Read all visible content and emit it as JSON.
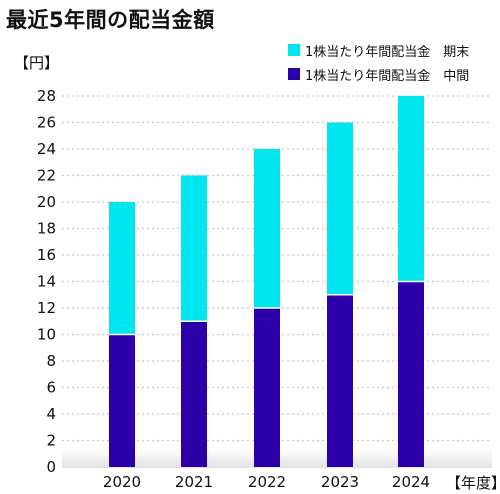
{
  "title": "最近5年間の配当金額",
  "chart_data": {
    "type": "bar",
    "stacked": true,
    "categories": [
      "2020",
      "2021",
      "2022",
      "2023",
      "2024"
    ],
    "series": [
      {
        "name": "1株当たり年間配当金　中間",
        "color": "#2b00a8",
        "values": [
          10,
          11,
          12,
          13,
          14
        ]
      },
      {
        "name": "1株当たり年間配当金　期末",
        "color": "#00e5ee",
        "values": [
          10,
          11,
          12,
          13,
          14
        ]
      }
    ],
    "ylabel": "【円】",
    "xlabel": "【年度】",
    "ylim": [
      0,
      28
    ],
    "yticks": [
      0,
      2,
      4,
      6,
      8,
      10,
      12,
      14,
      16,
      18,
      20,
      22,
      24,
      26,
      28
    ],
    "grid": true,
    "legend": "top-right"
  }
}
